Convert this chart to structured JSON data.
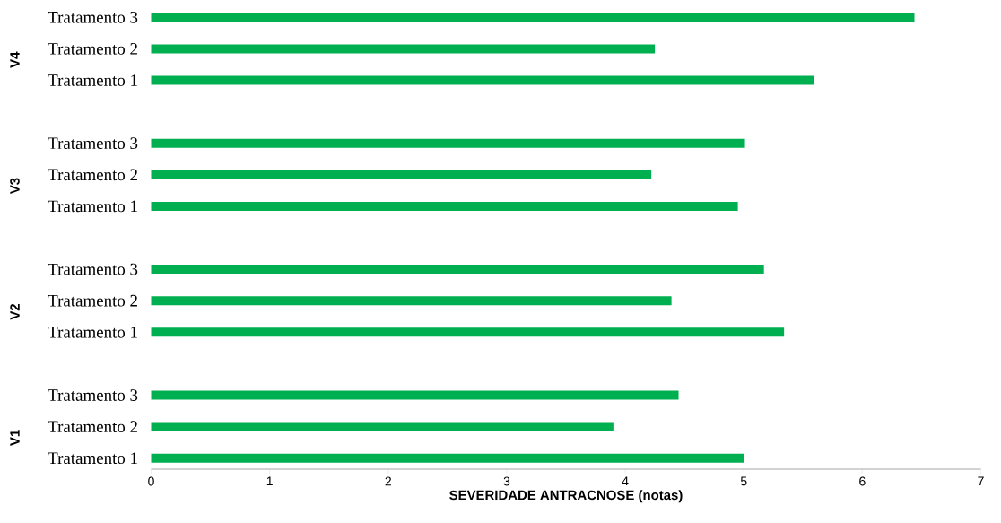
{
  "chart_data": {
    "type": "bar",
    "orientation": "horizontal",
    "xlabel": "SEVERIDADE  ANTRACNOSE  (notas)",
    "categories": [
      "Tratamento 3",
      "Tratamento 2",
      "Tratamento 1",
      null,
      "Tratamento 3",
      "Tratamento 2",
      "Tratamento 1",
      null,
      "Tratamento 3",
      "Tratamento 2",
      "Tratamento 1",
      null,
      "Tratamento 3",
      "Tratamento 2",
      "Tratamento 1"
    ],
    "values": [
      6.44,
      4.25,
      5.59,
      null,
      5.01,
      4.22,
      4.95,
      null,
      5.17,
      4.39,
      5.34,
      null,
      4.45,
      3.9,
      5.0
    ],
    "color": "#00b050",
    "xlim": [
      0,
      7
    ],
    "xticks": [
      0,
      1,
      2,
      3,
      4,
      5,
      6,
      7
    ],
    "annotations": [
      "V4",
      "V3",
      "V2",
      "V1"
    ]
  }
}
